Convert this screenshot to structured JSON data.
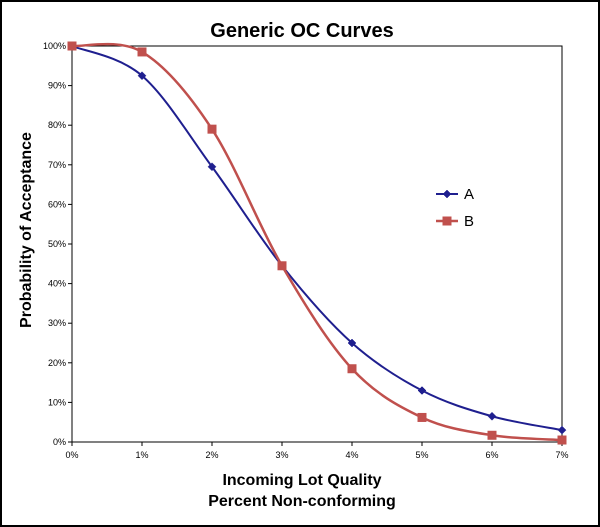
{
  "chart_data": {
    "type": "line",
    "title": "Generic OC Curves",
    "xlabel": [
      "Incoming Lot Quality",
      "Percent Non-conforming"
    ],
    "ylabel": "Probability of Acceptance",
    "x": [
      0,
      1,
      2,
      3,
      4,
      5,
      6,
      7
    ],
    "x_tick_labels": [
      "0%",
      "1%",
      "2%",
      "3%",
      "4%",
      "5%",
      "6%",
      "7%"
    ],
    "y_tick_labels": [
      "0%",
      "10%",
      "20%",
      "30%",
      "40%",
      "50%",
      "60%",
      "70%",
      "80%",
      "90%",
      "100%"
    ],
    "xlim": [
      0,
      7
    ],
    "ylim": [
      0,
      100
    ],
    "grid": false,
    "legend_position": "right",
    "smooth": true,
    "series": [
      {
        "name": "A",
        "color": "#1f1f8f",
        "marker": "diamond",
        "values": [
          100,
          92.5,
          69.5,
          44.5,
          25,
          13,
          6.5,
          3
        ]
      },
      {
        "name": "B",
        "color": "#c0504d",
        "marker": "square",
        "values": [
          100,
          98.5,
          79,
          44.5,
          18.5,
          6.2,
          1.7,
          0.5
        ]
      }
    ]
  }
}
